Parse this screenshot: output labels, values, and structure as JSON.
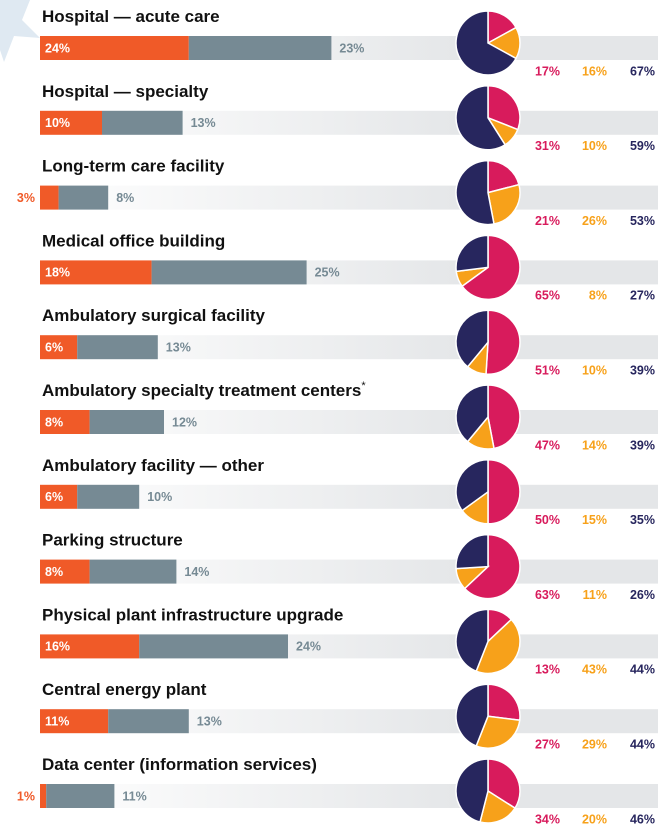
{
  "colors": {
    "bar_primary": "#f05a28",
    "bar_secondary": "#768a94",
    "pie": [
      "#d81b5c",
      "#f7a11a",
      "#27265e"
    ]
  },
  "rows": [
    {
      "label": "Hospital — acute care",
      "bars": [
        24,
        23
      ],
      "bar_labels": [
        "24%",
        "23%"
      ],
      "pie": [
        17,
        16,
        67
      ],
      "pie_labels": [
        "17%",
        "16%",
        "67%"
      ]
    },
    {
      "label": "Hospital — specialty",
      "bars": [
        10,
        13
      ],
      "bar_labels": [
        "10%",
        "13%"
      ],
      "pie": [
        31,
        10,
        59
      ],
      "pie_labels": [
        "31%",
        "10%",
        "59%"
      ]
    },
    {
      "label": "Long-term care facility",
      "bars": [
        3,
        8
      ],
      "bar_labels": [
        "3%",
        "8%"
      ],
      "pie": [
        21,
        26,
        53
      ],
      "pie_labels": [
        "21%",
        "26%",
        "53%"
      ]
    },
    {
      "label": "Medical office building",
      "bars": [
        18,
        25
      ],
      "bar_labels": [
        "18%",
        "25%"
      ],
      "pie": [
        65,
        8,
        27
      ],
      "pie_labels": [
        "65%",
        "8%",
        "27%"
      ]
    },
    {
      "label": "Ambulatory surgical facility",
      "bars": [
        6,
        13
      ],
      "bar_labels": [
        "6%",
        "13%"
      ],
      "pie": [
        51,
        10,
        39
      ],
      "pie_labels": [
        "51%",
        "10%",
        "39%"
      ]
    },
    {
      "label": "Ambulatory specialty treatment centers",
      "footnote_mark": "*",
      "bars": [
        8,
        12
      ],
      "bar_labels": [
        "8%",
        "12%"
      ],
      "pie": [
        47,
        14,
        39
      ],
      "pie_labels": [
        "47%",
        "14%",
        "39%"
      ]
    },
    {
      "label": "Ambulatory facility — other",
      "bars": [
        6,
        10
      ],
      "bar_labels": [
        "6%",
        "10%"
      ],
      "pie": [
        50,
        15,
        35
      ],
      "pie_labels": [
        "50%",
        "15%",
        "35%"
      ]
    },
    {
      "label": "Parking structure",
      "bars": [
        8,
        14
      ],
      "bar_labels": [
        "8%",
        "14%"
      ],
      "pie": [
        63,
        11,
        26
      ],
      "pie_labels": [
        "63%",
        "11%",
        "26%"
      ]
    },
    {
      "label": "Physical plant infrastructure upgrade",
      "bars": [
        16,
        24
      ],
      "bar_labels": [
        "16%",
        "24%"
      ],
      "pie": [
        13,
        43,
        44
      ],
      "pie_labels": [
        "13%",
        "43%",
        "44%"
      ]
    },
    {
      "label": "Central energy plant",
      "bars": [
        11,
        13
      ],
      "bar_labels": [
        "11%",
        "13%"
      ],
      "pie": [
        27,
        29,
        44
      ],
      "pie_labels": [
        "27%",
        "29%",
        "44%"
      ]
    },
    {
      "label": "Data center (information services)",
      "bars": [
        1,
        11
      ],
      "bar_labels": [
        "1%",
        "11%"
      ],
      "pie": [
        34,
        20,
        46
      ],
      "pie_labels": [
        "34%",
        "20%",
        "46%"
      ]
    }
  ]
}
